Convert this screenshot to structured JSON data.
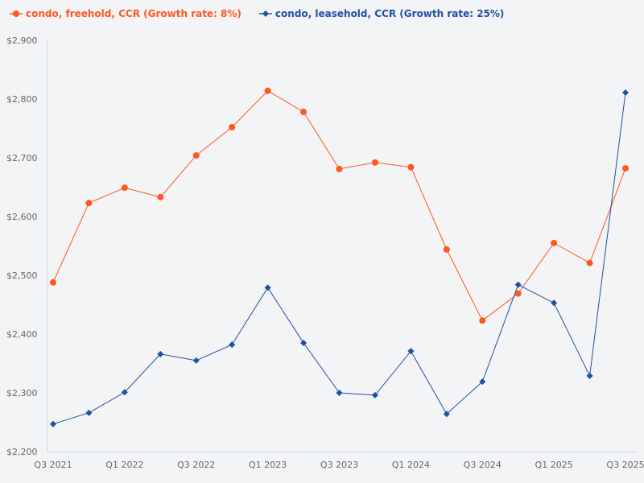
{
  "chart_data": {
    "type": "line",
    "title": "",
    "xlabel": "",
    "ylabel": "",
    "ylim": [
      2200,
      2900
    ],
    "y_ticks": [
      "$2,200",
      "$2,300",
      "$2,400",
      "$2,500",
      "$2,600",
      "$2,700",
      "$2,800",
      "$2,900"
    ],
    "y_tick_values": [
      2200,
      2300,
      2400,
      2500,
      2600,
      2700,
      2800,
      2900
    ],
    "grid": false,
    "legend_position": "top-left",
    "categories": [
      "Q3 2021",
      "Q4 2021",
      "Q1 2022",
      "Q2 2022",
      "Q3 2022",
      "Q4 2022",
      "Q1 2023",
      "Q2 2023",
      "Q3 2023",
      "Q4 2023",
      "Q1 2024",
      "Q2 2024",
      "Q3 2024",
      "Q4 2024",
      "Q1 2025",
      "Q2 2025",
      "Q3 2025"
    ],
    "x_tick_labels": [
      "Q3 2021",
      "Q1 2022",
      "Q3 2022",
      "Q1 2023",
      "Q3 2023",
      "Q1 2024",
      "Q3 2024",
      "Q1 2025",
      "Q3 2025"
    ],
    "series": [
      {
        "name": "condo, freehold, CCR (Growth rate: 8%)",
        "color": "#ff5722",
        "marker": "circle",
        "values": [
          2488,
          2623,
          2649,
          2633,
          2704,
          2752,
          2814,
          2778,
          2681,
          2692,
          2684,
          2544,
          2423,
          2469,
          2555,
          2521,
          2682
        ]
      },
      {
        "name": "condo, leasehold, CCR (Growth rate: 25%)",
        "color": "#2250a0",
        "marker": "diamond",
        "values": [
          2247,
          2266,
          2301,
          2366,
          2355,
          2382,
          2479,
          2385,
          2300,
          2296,
          2371,
          2264,
          2319,
          2484,
          2453,
          2329,
          2811
        ]
      }
    ]
  }
}
